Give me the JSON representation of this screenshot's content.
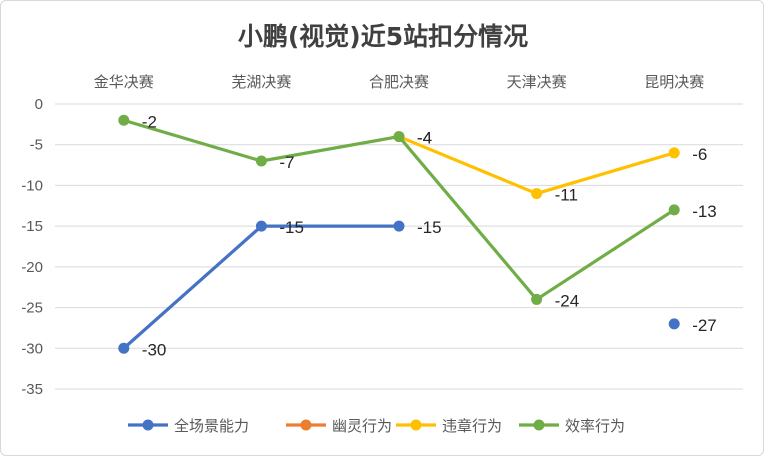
{
  "chart_data": {
    "type": "line",
    "title": "小鹏(视觉)近5站扣分情况",
    "categories": [
      "金华决赛",
      "芜湖决赛",
      "合肥决赛",
      "天津决赛",
      "昆明决赛"
    ],
    "ylim": [
      -35,
      0
    ],
    "yticks": [
      0,
      -5,
      -10,
      -15,
      -20,
      -25,
      -30,
      -35
    ],
    "grid": true,
    "legend_position": "bottom",
    "x_axis_position": "top",
    "series": [
      {
        "name": "全场景能力",
        "color": "#4472C4",
        "values": [
          -30,
          -15,
          -15,
          null,
          -27
        ]
      },
      {
        "name": "幽灵行为",
        "color": "#ED7D31",
        "values": [
          null,
          null,
          null,
          null,
          null
        ]
      },
      {
        "name": "违章行为",
        "color": "#FFC000",
        "values": [
          null,
          null,
          -4,
          -11,
          -6
        ]
      },
      {
        "name": "效率行为",
        "color": "#70AD47",
        "values": [
          -2,
          -7,
          -4,
          -24,
          -13
        ]
      }
    ]
  }
}
